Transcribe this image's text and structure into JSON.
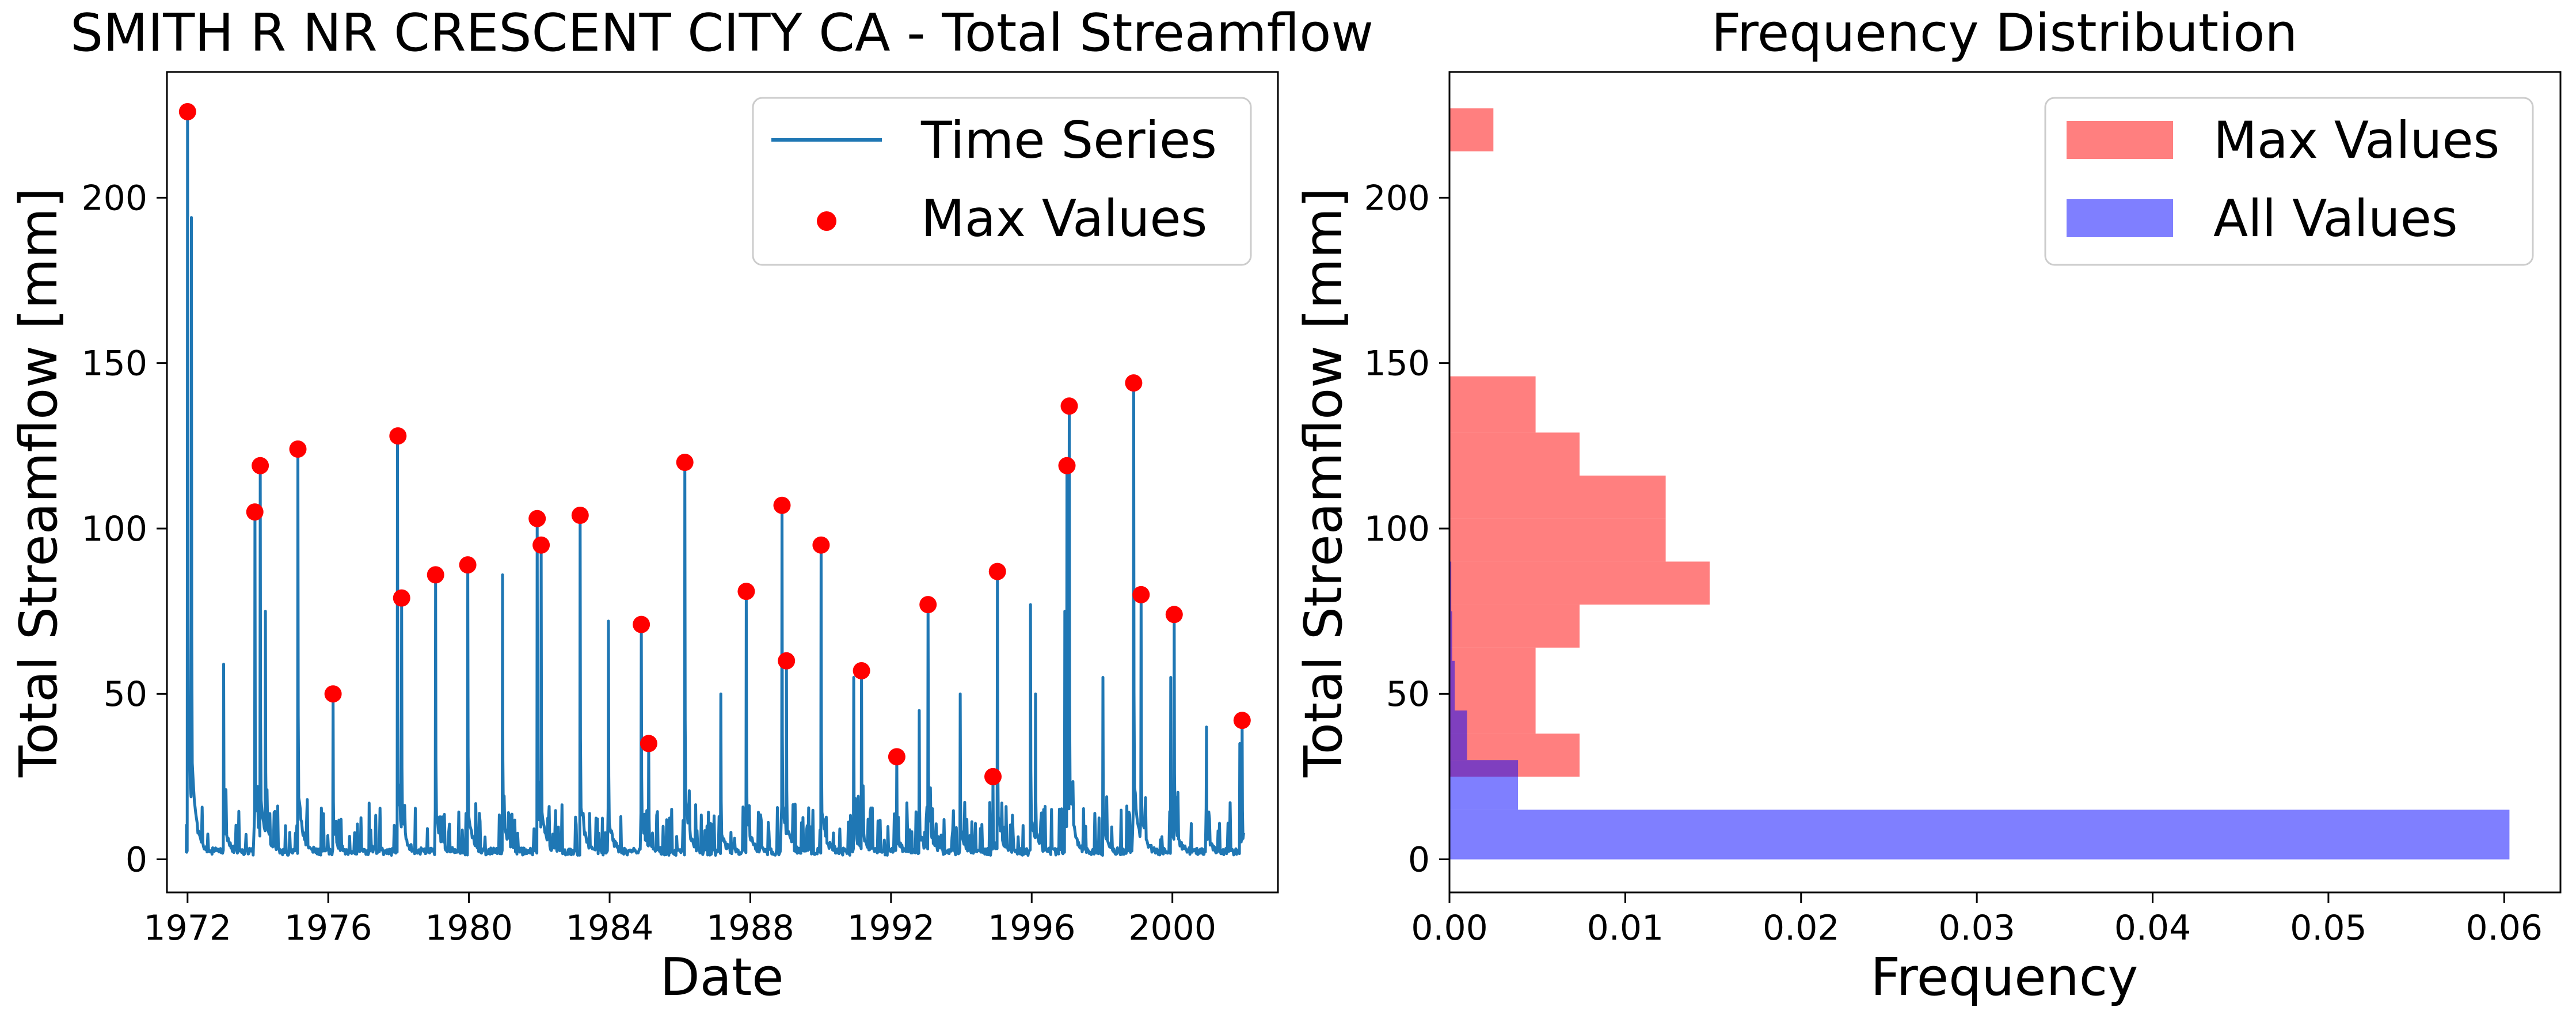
{
  "chart_data": [
    {
      "type": "line",
      "title": "SMITH R NR CRESCENT CITY CA - Total Streamflow",
      "xlabel": "Date",
      "ylabel": "Total Streamflow [mm]",
      "xlim": [
        "1971-06-01",
        "2003-01-01"
      ],
      "ylim": [
        -10,
        238
      ],
      "x_ticks": [
        "1972",
        "1976",
        "1980",
        "1984",
        "1988",
        "1992",
        "1996",
        "2000"
      ],
      "y_ticks": [
        0,
        50,
        100,
        150,
        200
      ],
      "grid": false,
      "legend": {
        "placement": "top-right",
        "entries": [
          "Time Series",
          "Max Values"
        ]
      },
      "colors": {
        "line": "#1f77b4",
        "markers": "#ff0000"
      },
      "series": [
        {
          "name": "Time Series",
          "peaks": [
            [
              "1972-01-01",
              226
            ],
            [
              "1972-02-10",
              194
            ],
            [
              "1973-01-10",
              59
            ],
            [
              "1973-12-01",
              105
            ],
            [
              "1974-01-25",
              119
            ],
            [
              "1974-03-20",
              75
            ],
            [
              "1975-02-20",
              124
            ],
            [
              "1976-02-20",
              50
            ],
            [
              "1977-03-01",
              17
            ],
            [
              "1977-12-20",
              128
            ],
            [
              "1978-02-01",
              79
            ],
            [
              "1979-01-20",
              86
            ],
            [
              "1979-12-20",
              89
            ],
            [
              "1980-12-15",
              86
            ],
            [
              "1981-12-10",
              103
            ],
            [
              "1982-01-20",
              95
            ],
            [
              "1983-03-01",
              104
            ],
            [
              "1983-12-20",
              72
            ],
            [
              "1984-11-25",
              71
            ],
            [
              "1985-02-10",
              35
            ],
            [
              "1986-02-20",
              120
            ],
            [
              "1987-03-01",
              50
            ],
            [
              "1987-11-20",
              81
            ],
            [
              "1988-11-25",
              107
            ],
            [
              "1989-01-10",
              60
            ],
            [
              "1990-01-05",
              95
            ],
            [
              "1990-12-10",
              55
            ],
            [
              "1991-03-01",
              57
            ],
            [
              "1992-03-01",
              31
            ],
            [
              "1992-10-20",
              45
            ],
            [
              "1993-01-20",
              77
            ],
            [
              "1993-12-20",
              50
            ],
            [
              "1994-11-25",
              25
            ],
            [
              "1995-01-10",
              87
            ],
            [
              "1995-12-20",
              77
            ],
            [
              "1996-02-10",
              50
            ],
            [
              "1996-12-10",
              75
            ],
            [
              "1997-01-01",
              119
            ],
            [
              "1997-01-25",
              137
            ],
            [
              "1998-01-10",
              55
            ],
            [
              "1998-11-25",
              144
            ],
            [
              "1999-02-10",
              80
            ],
            [
              "1999-12-15",
              55
            ],
            [
              "2000-01-20",
              74
            ],
            [
              "2000-12-20",
              40
            ],
            [
              "2001-12-01",
              35
            ],
            [
              "2001-12-25",
              42
            ]
          ]
        },
        {
          "name": "Max Values",
          "points": [
            [
              "1972-01-01",
              226
            ],
            [
              "1973-11-30",
              105
            ],
            [
              "1974-01-25",
              119
            ],
            [
              "1975-02-20",
              124
            ],
            [
              "1976-02-20",
              50
            ],
            [
              "1977-12-25",
              128
            ],
            [
              "1978-02-01",
              79
            ],
            [
              "1979-01-20",
              86
            ],
            [
              "1979-12-20",
              89
            ],
            [
              "1981-12-10",
              103
            ],
            [
              "1982-01-20",
              95
            ],
            [
              "1983-03-01",
              104
            ],
            [
              "1984-11-25",
              71
            ],
            [
              "1985-02-10",
              35
            ],
            [
              "1986-02-20",
              120
            ],
            [
              "1987-11-20",
              81
            ],
            [
              "1988-11-25",
              107
            ],
            [
              "1989-01-10",
              60
            ],
            [
              "1990-01-05",
              95
            ],
            [
              "1991-03-01",
              57
            ],
            [
              "1992-03-01",
              31
            ],
            [
              "1993-01-20",
              77
            ],
            [
              "1994-11-25",
              25
            ],
            [
              "1995-01-10",
              87
            ],
            [
              "1997-01-01",
              119
            ],
            [
              "1997-01-25",
              137
            ],
            [
              "1998-11-25",
              144
            ],
            [
              "1999-02-10",
              80
            ],
            [
              "2000-01-20",
              74
            ],
            [
              "2001-12-25",
              42
            ]
          ]
        }
      ]
    },
    {
      "type": "bar",
      "orientation": "horizontal",
      "title": "Frequency Distribution",
      "xlabel": "Frequency",
      "ylabel": "Total Streamflow [mm]",
      "xlim": [
        0,
        0.0632
      ],
      "ylim": [
        -10,
        238
      ],
      "x_ticks": [
        "0.00",
        "0.01",
        "0.02",
        "0.03",
        "0.04",
        "0.05",
        "0.06"
      ],
      "y_ticks": [
        0,
        50,
        100,
        150,
        200
      ],
      "grid": false,
      "legend": {
        "placement": "top-right",
        "entries": [
          "Max Values",
          "All Values"
        ]
      },
      "colors": {
        "max_values": "#ff0000",
        "all_values": "#0000ff"
      },
      "opacity": 0.5,
      "series": [
        {
          "name": "Max Values",
          "bins": [
            {
              "y0": 25,
              "y1": 38,
              "value": 0.0074
            },
            {
              "y0": 38,
              "y1": 51,
              "value": 0.0049
            },
            {
              "y0": 51,
              "y1": 64,
              "value": 0.0049
            },
            {
              "y0": 64,
              "y1": 77,
              "value": 0.0074
            },
            {
              "y0": 77,
              "y1": 90,
              "value": 0.0148
            },
            {
              "y0": 90,
              "y1": 103,
              "value": 0.0123
            },
            {
              "y0": 103,
              "y1": 116,
              "value": 0.0123
            },
            {
              "y0": 116,
              "y1": 129,
              "value": 0.0074
            },
            {
              "y0": 129,
              "y1": 146,
              "value": 0.0049
            },
            {
              "y0": 214,
              "y1": 227,
              "value": 0.0025
            }
          ]
        },
        {
          "name": "All Values",
          "bins": [
            {
              "y0": 0,
              "y1": 15,
              "value": 0.0603
            },
            {
              "y0": 15,
              "y1": 30,
              "value": 0.0039
            },
            {
              "y0": 30,
              "y1": 45,
              "value": 0.001
            },
            {
              "y0": 45,
              "y1": 60,
              "value": 0.0003
            },
            {
              "y0": 60,
              "y1": 75,
              "value": 0.00015
            },
            {
              "y0": 75,
              "y1": 90,
              "value": 0.0001
            }
          ]
        }
      ]
    }
  ]
}
